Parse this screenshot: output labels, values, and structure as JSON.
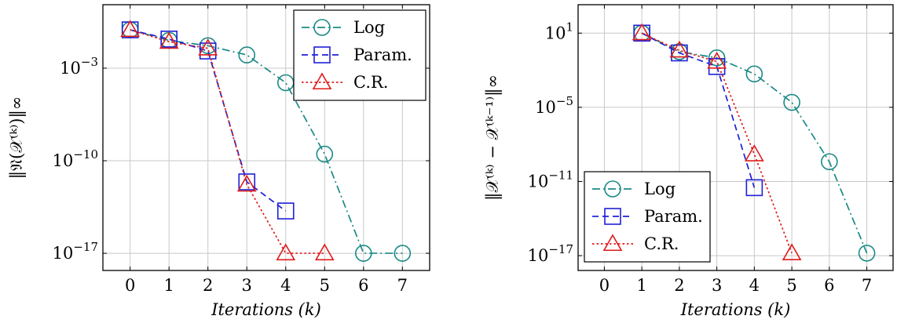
{
  "colors": {
    "log": "#1a8a86",
    "param": "#1f1fd6",
    "cr": "#e01b1b"
  },
  "chart_data": [
    {
      "type": "line",
      "ylabel": "‖𝔑(𝒳⁽ᵏ⁾)‖∞",
      "xlabel": "Iterations (k)",
      "x_ticks": [
        0,
        1,
        2,
        3,
        4,
        5,
        6,
        7
      ],
      "xlim": [
        -0.7,
        7.7
      ],
      "yscale": "log",
      "ylim_exp": [
        -18.3,
        1.8
      ],
      "y_ticks": [
        {
          "exp": -3,
          "base": "10",
          "sup": "−3"
        },
        {
          "exp": -10,
          "base": "10",
          "sup": "−10"
        },
        {
          "exp": -17,
          "base": "10",
          "sup": "−17"
        }
      ],
      "grid": true,
      "legend": {
        "placement": "top-right"
      },
      "series": [
        {
          "name": "Log",
          "key": "log",
          "x": [
            0,
            1,
            2,
            3,
            4,
            5,
            6,
            7
          ],
          "y_exp": [
            -0.1,
            -0.9,
            -1.3,
            -2.0,
            -4.1,
            -9.5,
            -17.0,
            -17.0
          ]
        },
        {
          "name": "Param.",
          "key": "param",
          "x": [
            0,
            1,
            2,
            3,
            4
          ],
          "y_exp": [
            -0.1,
            -0.8,
            -1.7,
            -11.6,
            -13.8
          ]
        },
        {
          "name": "C.R.",
          "key": "cr",
          "x": [
            0,
            1,
            2,
            3,
            4,
            5
          ],
          "y_exp": [
            -0.1,
            -1.0,
            -1.5,
            -11.8,
            -17.0,
            -17.0
          ]
        }
      ]
    },
    {
      "type": "line",
      "ylabel": "‖𝒳⁽ᵏ⁾ − 𝒳⁽ᵏ⁻¹⁾‖∞",
      "xlabel": "Iterations (k)",
      "x_ticks": [
        0,
        1,
        2,
        3,
        4,
        5,
        6,
        7
      ],
      "xlim": [
        -0.7,
        7.7
      ],
      "yscale": "log",
      "ylim_exp": [
        -18.2,
        3.3
      ],
      "y_ticks": [
        {
          "exp": 1,
          "base": "10",
          "sup": "1"
        },
        {
          "exp": -5,
          "base": "10",
          "sup": "−5"
        },
        {
          "exp": -11,
          "base": "10",
          "sup": "−11"
        },
        {
          "exp": -17,
          "base": "10",
          "sup": "−17"
        }
      ],
      "grid": true,
      "legend": {
        "placement": "bottom-left"
      },
      "series": [
        {
          "name": "Log",
          "key": "log",
          "x": [
            1,
            2,
            3,
            4,
            5,
            6,
            7
          ],
          "y_exp": [
            1.0,
            -0.5,
            -1.0,
            -2.3,
            -4.6,
            -9.4,
            -16.8
          ]
        },
        {
          "name": "Param.",
          "key": "param",
          "x": [
            1,
            2,
            3,
            4
          ],
          "y_exp": [
            1.0,
            -0.6,
            -1.7,
            -11.5
          ]
        },
        {
          "name": "C.R.",
          "key": "cr",
          "x": [
            1,
            2,
            3,
            4,
            5
          ],
          "y_exp": [
            1.0,
            -0.4,
            -1.3,
            -8.8,
            -16.8
          ]
        }
      ]
    }
  ]
}
